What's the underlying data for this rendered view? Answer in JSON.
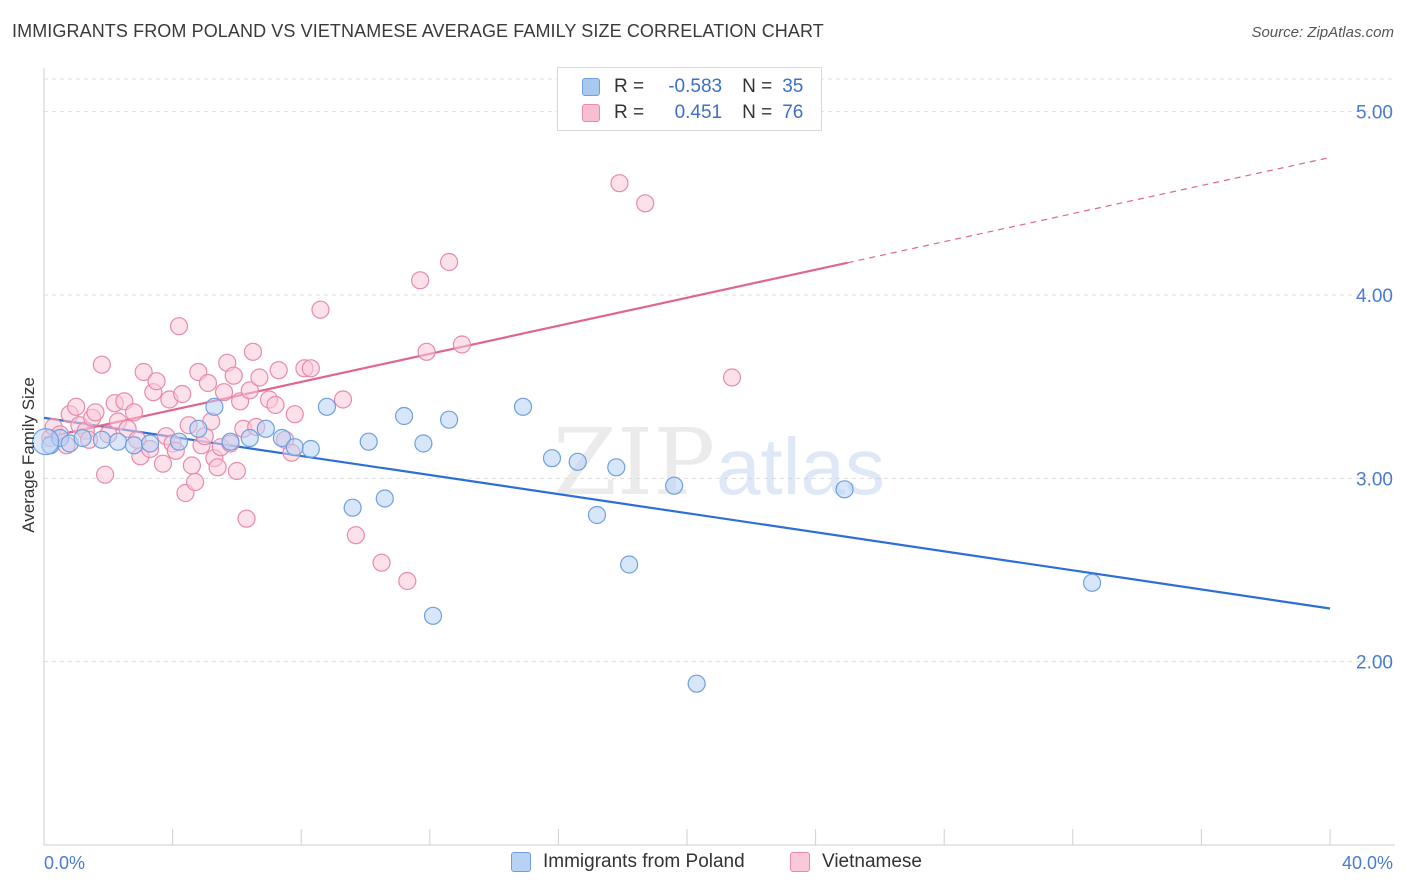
{
  "header": {
    "title": "IMMIGRANTS FROM POLAND VS VIETNAMESE AVERAGE FAMILY SIZE CORRELATION CHART",
    "source": "Source: ZipAtlas.com"
  },
  "watermark": {
    "part1": "ZIP",
    "part2": "atlas"
  },
  "legend": {
    "rows": [
      {
        "r_label": "R =",
        "r_value": "-0.583",
        "n_label": "N =",
        "n_value": "35",
        "color": "#a9c8f0",
        "border": "#6f9fe0"
      },
      {
        "r_label": "R =",
        "r_value": "0.451",
        "n_label": "N =",
        "n_value": "76",
        "color": "#f7bfd1",
        "border": "#e88aa8"
      }
    ]
  },
  "bottom_legend": {
    "items": [
      {
        "label": "Immigrants from Poland",
        "color": "#b8d2f4",
        "border": "#6f9fe0"
      },
      {
        "label": "Vietnamese",
        "color": "#f9c9d8",
        "border": "#e88aa8"
      }
    ]
  },
  "chart_data": {
    "type": "scatter",
    "title": "IMMIGRANTS FROM POLAND VS VIETNAMESE AVERAGE FAMILY SIZE CORRELATION CHART",
    "xlabel": "",
    "ylabel": "Average Family Size",
    "xlim": [
      0,
      40
    ],
    "ylim": [
      1.0,
      5.2
    ],
    "x_tick_labels": [
      "0.0%",
      "40.0%"
    ],
    "y_ticks": [
      2.0,
      3.0,
      4.0,
      5.0
    ],
    "y_tick_labels": [
      "2.00",
      "3.00",
      "4.00",
      "5.00"
    ],
    "grid": "horizontal dashed",
    "legend_position": "top-center",
    "series": [
      {
        "name": "Immigrants from Poland",
        "color": "#6f9fe0",
        "fill": "#b8d2f4",
        "line_color": "#2e6fd6",
        "trend": {
          "x0": 0,
          "y0": 3.33,
          "x1": 40,
          "y1": 2.29,
          "dashed_from": null
        },
        "points": [
          [
            0.2,
            3.18
          ],
          [
            0.5,
            3.22
          ],
          [
            0.8,
            3.19
          ],
          [
            1.2,
            3.22
          ],
          [
            1.8,
            3.21
          ],
          [
            2.3,
            3.2
          ],
          [
            2.8,
            3.18
          ],
          [
            3.3,
            3.19
          ],
          [
            4.2,
            3.2
          ],
          [
            4.8,
            3.27
          ],
          [
            5.3,
            3.39
          ],
          [
            5.8,
            3.2
          ],
          [
            6.4,
            3.22
          ],
          [
            6.9,
            3.27
          ],
          [
            7.4,
            3.22
          ],
          [
            7.8,
            3.17
          ],
          [
            8.3,
            3.16
          ],
          [
            8.8,
            3.39
          ],
          [
            9.6,
            2.84
          ],
          [
            10.1,
            3.2
          ],
          [
            10.6,
            2.89
          ],
          [
            11.2,
            3.34
          ],
          [
            11.8,
            3.19
          ],
          [
            12.1,
            2.25
          ],
          [
            12.6,
            3.32
          ],
          [
            14.9,
            3.39
          ],
          [
            15.8,
            3.11
          ],
          [
            16.6,
            3.09
          ],
          [
            17.2,
            2.8
          ],
          [
            17.8,
            3.06
          ],
          [
            18.2,
            2.53
          ],
          [
            19.6,
            2.96
          ],
          [
            20.3,
            1.88
          ],
          [
            24.9,
            2.94
          ],
          [
            32.6,
            2.43
          ]
        ]
      },
      {
        "name": "Vietnamese",
        "color": "#e88aa8",
        "fill": "#f9c9d8",
        "line_color": "#e06590",
        "trend": {
          "x0": 0,
          "y0": 3.22,
          "x1": 40,
          "y1": 4.75,
          "solid_until": 25
        },
        "points": [
          [
            0.2,
            3.22
          ],
          [
            0.3,
            3.28
          ],
          [
            0.5,
            3.24
          ],
          [
            0.7,
            3.18
          ],
          [
            0.8,
            3.35
          ],
          [
            1.0,
            3.39
          ],
          [
            1.1,
            3.29
          ],
          [
            1.3,
            3.26
          ],
          [
            1.4,
            3.21
          ],
          [
            1.5,
            3.33
          ],
          [
            1.6,
            3.36
          ],
          [
            1.8,
            3.62
          ],
          [
            1.9,
            3.02
          ],
          [
            2.0,
            3.24
          ],
          [
            2.2,
            3.41
          ],
          [
            2.3,
            3.31
          ],
          [
            2.5,
            3.42
          ],
          [
            2.6,
            3.27
          ],
          [
            2.8,
            3.36
          ],
          [
            2.9,
            3.21
          ],
          [
            3.0,
            3.12
          ],
          [
            3.1,
            3.58
          ],
          [
            3.3,
            3.16
          ],
          [
            3.4,
            3.47
          ],
          [
            3.5,
            3.53
          ],
          [
            3.7,
            3.08
          ],
          [
            3.8,
            3.23
          ],
          [
            3.9,
            3.43
          ],
          [
            4.0,
            3.19
          ],
          [
            4.1,
            3.15
          ],
          [
            4.2,
            3.83
          ],
          [
            4.3,
            3.46
          ],
          [
            4.4,
            2.92
          ],
          [
            4.5,
            3.29
          ],
          [
            4.6,
            3.07
          ],
          [
            4.7,
            2.98
          ],
          [
            4.8,
            3.58
          ],
          [
            4.9,
            3.18
          ],
          [
            5.0,
            3.23
          ],
          [
            5.1,
            3.52
          ],
          [
            5.2,
            3.31
          ],
          [
            5.3,
            3.11
          ],
          [
            5.4,
            3.06
          ],
          [
            5.5,
            3.17
          ],
          [
            5.6,
            3.47
          ],
          [
            5.7,
            3.63
          ],
          [
            5.8,
            3.19
          ],
          [
            5.9,
            3.56
          ],
          [
            6.0,
            3.04
          ],
          [
            6.1,
            3.42
          ],
          [
            6.2,
            3.27
          ],
          [
            6.3,
            2.78
          ],
          [
            6.4,
            3.48
          ],
          [
            6.5,
            3.69
          ],
          [
            6.6,
            3.28
          ],
          [
            6.7,
            3.55
          ],
          [
            7.0,
            3.43
          ],
          [
            7.2,
            3.4
          ],
          [
            7.3,
            3.59
          ],
          [
            7.5,
            3.21
          ],
          [
            7.7,
            3.14
          ],
          [
            7.8,
            3.35
          ],
          [
            8.1,
            3.6
          ],
          [
            8.3,
            3.6
          ],
          [
            8.6,
            3.92
          ],
          [
            9.3,
            3.43
          ],
          [
            9.7,
            2.69
          ],
          [
            10.5,
            2.54
          ],
          [
            11.3,
            2.44
          ],
          [
            11.7,
            4.08
          ],
          [
            11.9,
            3.69
          ],
          [
            12.6,
            4.18
          ],
          [
            13.0,
            3.73
          ],
          [
            17.9,
            4.61
          ],
          [
            18.7,
            4.5
          ],
          [
            21.4,
            3.55
          ]
        ]
      }
    ]
  }
}
